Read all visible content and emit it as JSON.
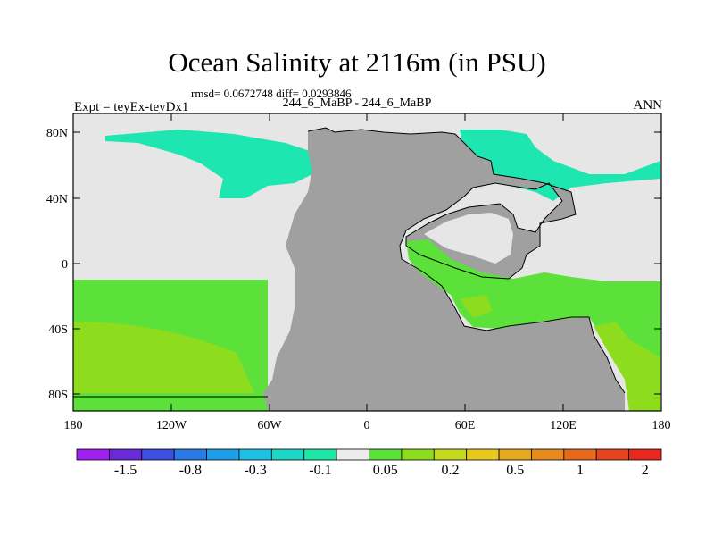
{
  "title": "Ocean Salinity at 2116m (in PSU)",
  "subtitle": "rmsd= 0.0672748 diff= 0.0293846",
  "left_label": "Expt = teyEx-teyDx1",
  "center_label": "244_6_MaBP - 244_6_MaBP",
  "right_label": "ANN",
  "lat_ticks": [
    "80N",
    "40N",
    "0",
    "40S",
    "80S"
  ],
  "lon_ticks": [
    "180",
    "120W",
    "60W",
    "0",
    "60E",
    "120E",
    "180"
  ],
  "colorbar": {
    "colors": [
      "#a020f0",
      "#6a2ad8",
      "#3d4ee0",
      "#2a7ae6",
      "#1e9ee6",
      "#1ec0e6",
      "#1ed6c6",
      "#1ee6a6",
      "#ececec",
      "#5ce03a",
      "#8edc1e",
      "#c4d81e",
      "#e6c81e",
      "#e6a81e",
      "#e68a1e",
      "#e66a1e",
      "#e6441e",
      "#e6281e"
    ],
    "labels": [
      "-1.5",
      "-0.8",
      "-0.3",
      "-0.1",
      "0.05",
      "0.2",
      "0.5",
      "1",
      "2"
    ]
  },
  "map_colors": {
    "land": "#a0a0a0",
    "neutral": "#e6e6e6",
    "teal": "#1ee6b0",
    "green": "#5ce03a",
    "lightgreen": "#8edc1e"
  }
}
